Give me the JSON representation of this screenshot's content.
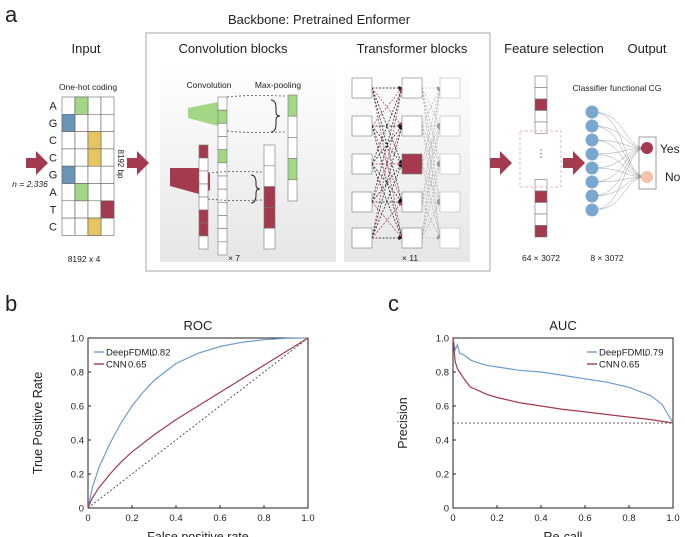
{
  "panels": {
    "a": "a",
    "b": "b",
    "c": "c"
  },
  "diagram": {
    "backbone_title": "Backbone: Pretrained Enformer",
    "input": {
      "title": "Input",
      "coding_label": "One-hot coding",
      "sequence": [
        "A",
        "G",
        "C",
        "C",
        "G",
        "A",
        "T",
        "C"
      ],
      "onehot_cells": [
        {
          "row": 0,
          "col": 1,
          "color": "#a3d685"
        },
        {
          "row": 1,
          "col": 0,
          "color": "#6a93b8"
        },
        {
          "row": 2,
          "col": 2,
          "color": "#e6c55f"
        },
        {
          "row": 3,
          "col": 2,
          "color": "#e6c55f"
        },
        {
          "row": 4,
          "col": 0,
          "color": "#6a93b8"
        },
        {
          "row": 5,
          "col": 1,
          "color": "#a3d685"
        },
        {
          "row": 6,
          "col": 3,
          "color": "#a33a4e"
        },
        {
          "row": 7,
          "col": 2,
          "color": "#e6c55f"
        }
      ],
      "length_label": "8192 bp",
      "n_label": "n = 2,336",
      "dims": "8192 x 4"
    },
    "convolution": {
      "title": "Convolution blocks",
      "conv_label": "Convolution",
      "pool_label": "Max-pooling",
      "repeat": "× 7"
    },
    "transformer": {
      "title": "Transformer blocks",
      "repeat": "× 11"
    },
    "feature_selection": {
      "title": "Feature selection",
      "dims": "64 × 3072"
    },
    "output": {
      "title": "Output",
      "classifier_label": "Classifier functional CG",
      "yes": "Yes",
      "no": "No",
      "dims": "8 × 3072"
    },
    "colors": {
      "red": "#a33a4e",
      "green": "#a3d685",
      "blue": "#6a93b8",
      "yellow": "#e6c55f",
      "node": "#7aa7cf",
      "no_node": "#f4c2a8"
    }
  },
  "chart_data": [
    {
      "type": "line",
      "title": "ROC",
      "xlabel": "False positive rate",
      "ylabel": "True Positive Rate",
      "xlim": [
        0,
        1
      ],
      "ylim": [
        0,
        1
      ],
      "xticks": [
        "0",
        "0.2",
        "0.4",
        "0.6",
        "0.8",
        "1.0"
      ],
      "yticks": [
        "0",
        "0.2",
        "0.4",
        "0.6",
        "0.8",
        "1.0"
      ],
      "legend_position": "top-left",
      "diagonal": [
        [
          0,
          0
        ],
        [
          1,
          1
        ]
      ],
      "series": [
        {
          "name": "DeepFDML",
          "value": "0.82",
          "color": "#6f9bd0",
          "points": [
            [
              0,
              0
            ],
            [
              0.02,
              0.12
            ],
            [
              0.05,
              0.24
            ],
            [
              0.1,
              0.38
            ],
            [
              0.15,
              0.5
            ],
            [
              0.2,
              0.6
            ],
            [
              0.25,
              0.68
            ],
            [
              0.3,
              0.75
            ],
            [
              0.35,
              0.8
            ],
            [
              0.4,
              0.85
            ],
            [
              0.5,
              0.91
            ],
            [
              0.6,
              0.95
            ],
            [
              0.7,
              0.975
            ],
            [
              0.8,
              0.99
            ],
            [
              0.9,
              0.998
            ],
            [
              1,
              1
            ]
          ]
        },
        {
          "name": "CNN",
          "value": "0.65",
          "color": "#a33a4e",
          "points": [
            [
              0,
              0
            ],
            [
              0.02,
              0.06
            ],
            [
              0.05,
              0.12
            ],
            [
              0.1,
              0.2
            ],
            [
              0.15,
              0.27
            ],
            [
              0.2,
              0.33
            ],
            [
              0.3,
              0.43
            ],
            [
              0.4,
              0.52
            ],
            [
              0.5,
              0.6
            ],
            [
              0.6,
              0.68
            ],
            [
              0.7,
              0.76
            ],
            [
              0.8,
              0.84
            ],
            [
              0.9,
              0.92
            ],
            [
              1,
              1
            ]
          ]
        }
      ]
    },
    {
      "type": "line",
      "title": "AUC",
      "xlabel": "Re-call",
      "ylabel": "Precision",
      "xlim": [
        0,
        1
      ],
      "ylim": [
        0,
        1
      ],
      "xticks": [
        "0",
        "0.2",
        "0.4",
        "0.6",
        "0.8",
        "1.0"
      ],
      "yticks": [
        "0",
        "0.2",
        "0.4",
        "0.6",
        "0.8",
        "1.0"
      ],
      "legend_position": "top-right",
      "baseline": 0.5,
      "series": [
        {
          "name": "DeepFDML",
          "value": "0.79",
          "color": "#6f9bd0",
          "points": [
            [
              0,
              1.0
            ],
            [
              0.01,
              0.93
            ],
            [
              0.02,
              0.96
            ],
            [
              0.03,
              0.91
            ],
            [
              0.05,
              0.9
            ],
            [
              0.08,
              0.87
            ],
            [
              0.1,
              0.86
            ],
            [
              0.15,
              0.84
            ],
            [
              0.2,
              0.83
            ],
            [
              0.3,
              0.81
            ],
            [
              0.4,
              0.8
            ],
            [
              0.5,
              0.78
            ],
            [
              0.6,
              0.76
            ],
            [
              0.7,
              0.74
            ],
            [
              0.8,
              0.71
            ],
            [
              0.9,
              0.66
            ],
            [
              0.95,
              0.61
            ],
            [
              1,
              0.5
            ]
          ]
        },
        {
          "name": "CNN",
          "value": "0.65",
          "color": "#a33a4e",
          "points": [
            [
              0,
              1.0
            ],
            [
              0.01,
              0.86
            ],
            [
              0.02,
              0.82
            ],
            [
              0.03,
              0.8
            ],
            [
              0.05,
              0.76
            ],
            [
              0.08,
              0.71
            ],
            [
              0.1,
              0.7
            ],
            [
              0.15,
              0.67
            ],
            [
              0.2,
              0.65
            ],
            [
              0.3,
              0.62
            ],
            [
              0.4,
              0.6
            ],
            [
              0.5,
              0.58
            ],
            [
              0.6,
              0.565
            ],
            [
              0.7,
              0.55
            ],
            [
              0.8,
              0.535
            ],
            [
              0.9,
              0.52
            ],
            [
              1,
              0.5
            ]
          ]
        }
      ]
    }
  ]
}
